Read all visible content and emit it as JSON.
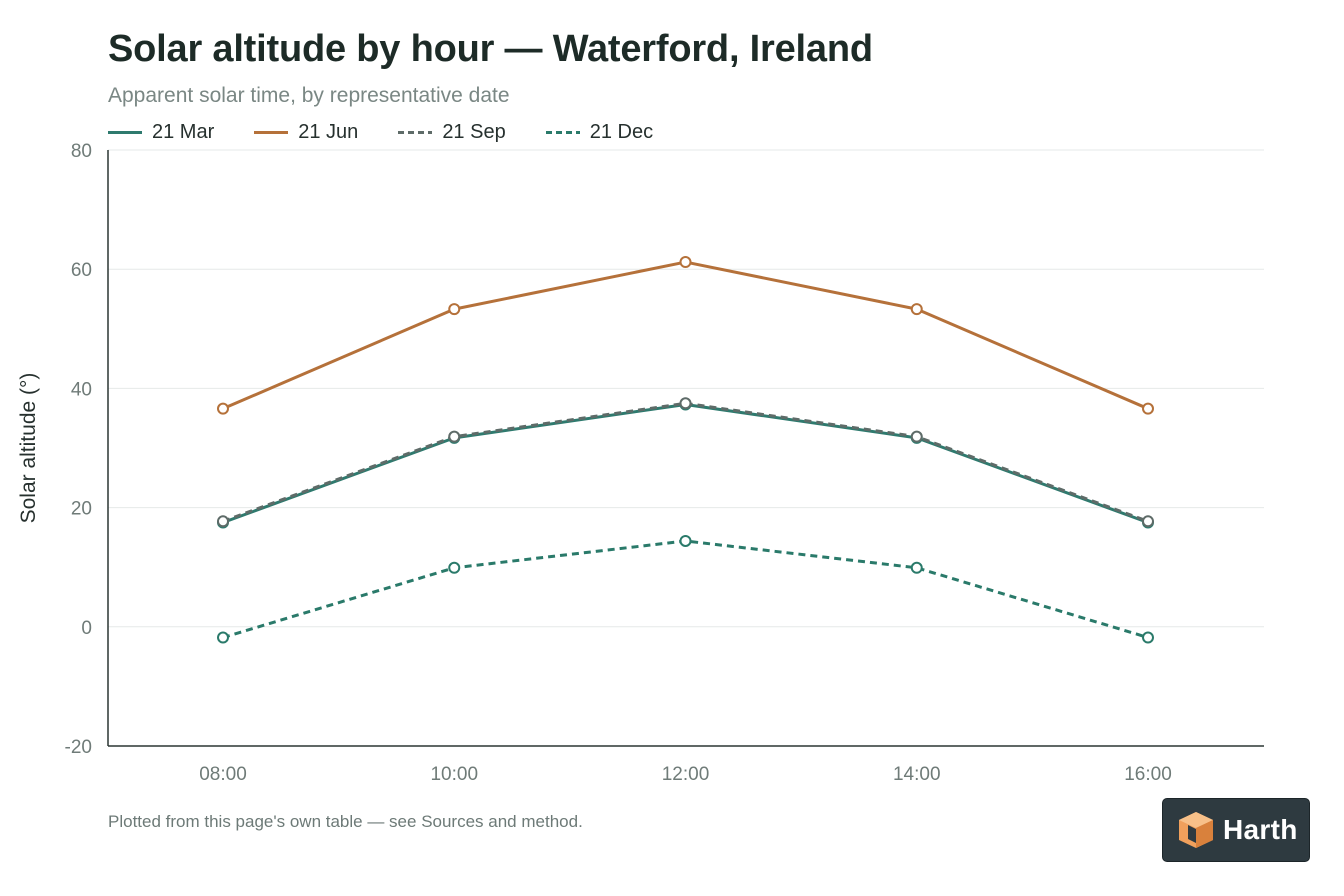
{
  "header": {
    "title": "Solar altitude by hour — Waterford, Ireland",
    "subtitle": "Apparent solar time, by representative date"
  },
  "footer": {
    "note": "Plotted from this page's own table — see Sources and method."
  },
  "brand": {
    "name": "Harth",
    "icon": "cube-icon",
    "colors": {
      "background": "#2e3a40",
      "icon": "#f0a05c",
      "text": "#ffffff"
    }
  },
  "chart_data": {
    "type": "line",
    "title": "Solar altitude by hour — Waterford, Ireland",
    "subtitle": "Apparent solar time, by representative date",
    "xlabel": "",
    "ylabel": "Solar altitude (°)",
    "categories": [
      "08:00",
      "10:00",
      "12:00",
      "14:00",
      "16:00"
    ],
    "ylim": [
      -20,
      80
    ],
    "yticks": [
      -20,
      0,
      20,
      40,
      60,
      80
    ],
    "grid": true,
    "legend_position": "top-left",
    "series": [
      {
        "name": "21 Mar",
        "values": [
          17.5,
          31.7,
          37.3,
          31.7,
          17.5
        ],
        "color": "#2e7a6e",
        "dashed": false
      },
      {
        "name": "21 Jun",
        "values": [
          36.6,
          53.3,
          61.2,
          53.3,
          36.6
        ],
        "color": "#b5713a",
        "dashed": false
      },
      {
        "name": "21 Sep",
        "values": [
          17.7,
          31.9,
          37.5,
          31.9,
          17.7
        ],
        "color": "#5e6b68",
        "dashed": true
      },
      {
        "name": "21 Dec",
        "values": [
          -1.8,
          9.9,
          14.4,
          9.9,
          -1.8
        ],
        "color": "#2a7a6a",
        "dashed": true
      }
    ]
  }
}
